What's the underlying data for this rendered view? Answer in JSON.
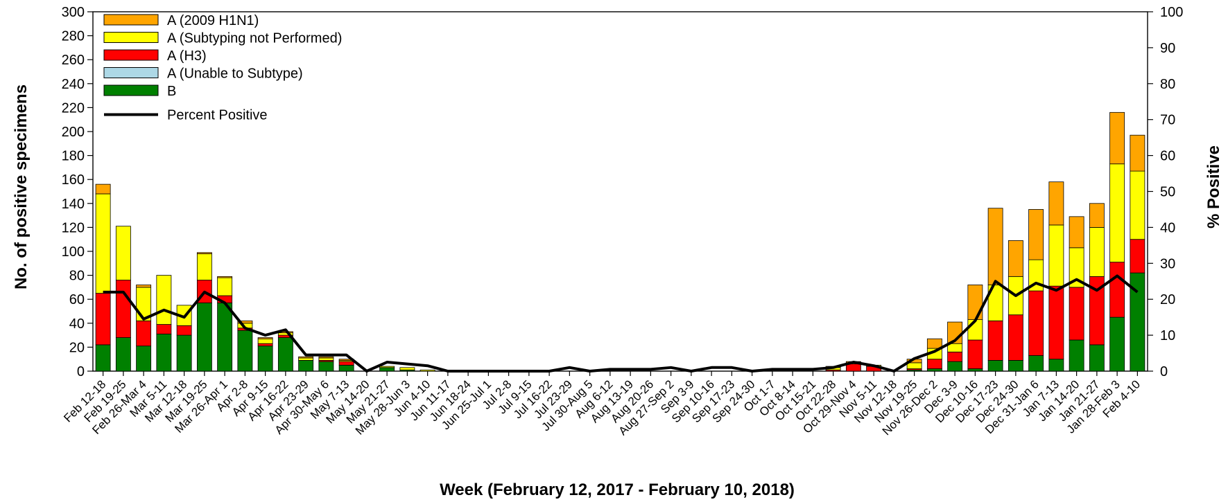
{
  "chart_data": {
    "type": "bar",
    "stacked": true,
    "title": "",
    "xlabel": "Week (February 12, 2017 - February 10, 2018)",
    "ylabel": "No. of positive specimens",
    "y2label": "% Positive",
    "ylim": [
      0,
      300
    ],
    "y2lim": [
      0,
      100
    ],
    "yticks": [
      "0",
      "20",
      "40",
      "60",
      "80",
      "100",
      "120",
      "140",
      "160",
      "180",
      "200",
      "220",
      "240",
      "260",
      "280",
      "300"
    ],
    "y2ticks": [
      "0",
      "10",
      "20",
      "30",
      "40",
      "50",
      "60",
      "70",
      "80",
      "90",
      "100"
    ],
    "legend_position": "top-left",
    "categories": [
      "Feb 12-18",
      "Feb 19-25",
      "Feb 26-Mar 4",
      "Mar 5-11",
      "Mar 12-18",
      "Mar 19-25",
      "Mar 26-Apr 1",
      "Apr 2-8",
      "Apr 9-15",
      "Apr 16-22",
      "Apr 23-29",
      "Apr 30-May 6",
      "May 7-13",
      "May 14-20",
      "May 21-27",
      "May 28-Jun 3",
      "Jun 4-10",
      "Jun 11-17",
      "Jun 18-24",
      "Jun 25-Jul 1",
      "Jul 2-8",
      "Jul 9-15",
      "Jul 16-22",
      "Jul 23-29",
      "Jul 30-Aug 5",
      "Aug 6-12",
      "Aug 13-19",
      "Aug 20-26",
      "Aug 27-Sep 2",
      "Sep 3-9",
      "Sep 10-16",
      "Sep 17-23",
      "Sep 24-30",
      "Oct 1-7",
      "Oct 8-14",
      "Oct 15-21",
      "Oct 22-28",
      "Oct 29-Nov 4",
      "Nov 5-11",
      "Nov 12-18",
      "Nov 19-25",
      "Nov 26-Dec 2",
      "Dec 3-9",
      "Dec 10-16",
      "Dec 17-23",
      "Dec 24-30",
      "Dec 31-Jan 6",
      "Jan 7-13",
      "Jan 14-20",
      "Jan 21-27",
      "Jan 28-Feb 3",
      "Feb 4-10"
    ],
    "series": [
      {
        "name": "B",
        "color": "#008000",
        "values": [
          22,
          28,
          21,
          31,
          30,
          57,
          57,
          34,
          21,
          28,
          9,
          8,
          5,
          0,
          3,
          1,
          0,
          0,
          0,
          0,
          0,
          0,
          0,
          0,
          0,
          0,
          0,
          0,
          0,
          0,
          0,
          0,
          0,
          0,
          0,
          0,
          0,
          0,
          0,
          0,
          1,
          2,
          8,
          2,
          9,
          9,
          13,
          10,
          26,
          22,
          45,
          82
        ]
      },
      {
        "name": "A (Unable to Subtype)",
        "color": "#add8e6",
        "values": [
          0,
          0,
          0,
          0,
          0,
          0,
          0,
          0,
          0,
          0,
          0,
          0,
          0,
          0,
          0,
          0,
          0,
          0,
          0,
          0,
          0,
          0,
          0,
          0,
          0,
          0,
          0,
          0,
          0,
          0,
          0,
          0,
          0,
          0,
          0,
          0,
          0,
          0,
          0,
          0,
          0,
          0,
          0,
          0,
          0,
          0,
          0,
          0,
          0,
          0,
          0,
          0
        ]
      },
      {
        "name": "A (H3)",
        "color": "#ff0000",
        "values": [
          43,
          48,
          21,
          8,
          8,
          19,
          6,
          2,
          2,
          2,
          0,
          1,
          3,
          0,
          0,
          0,
          0,
          0,
          0,
          0,
          0,
          0,
          0,
          0,
          0,
          0,
          0,
          0,
          0,
          0,
          0,
          0,
          0,
          0,
          0,
          0,
          1,
          6,
          4,
          0,
          1,
          8,
          8,
          24,
          33,
          38,
          54,
          61,
          44,
          57,
          46,
          28
        ]
      },
      {
        "name": "A (Subtyping not Performed)",
        "color": "#ffff00",
        "values": [
          83,
          45,
          28,
          41,
          17,
          22,
          15,
          4,
          4,
          2,
          2,
          2,
          1,
          0,
          1,
          2,
          1,
          0,
          0,
          0,
          0,
          0,
          0,
          0,
          0,
          0,
          0,
          0,
          0,
          0,
          0,
          0,
          0,
          0,
          0,
          0,
          2,
          1,
          1,
          0,
          5,
          9,
          7,
          17,
          30,
          32,
          26,
          51,
          33,
          41,
          82,
          57
        ]
      },
      {
        "name": "A (2009 H1N1)",
        "color": "#ffa500",
        "values": [
          8,
          0,
          2,
          0,
          0,
          1,
          1,
          2,
          1,
          1,
          1,
          1,
          1,
          0,
          0,
          0,
          0,
          0,
          0,
          0,
          0,
          0,
          0,
          0,
          0,
          0,
          0,
          0,
          0,
          0,
          0,
          0,
          0,
          0,
          0,
          0,
          1,
          1,
          0,
          0,
          3,
          8,
          18,
          29,
          64,
          30,
          42,
          36,
          26,
          20,
          43,
          30
        ]
      }
    ],
    "line_series": {
      "name": "Percent Positive",
      "color": "#000000",
      "axis": "right",
      "values": [
        22,
        22,
        14.5,
        17,
        15,
        22,
        19,
        12,
        10,
        11.5,
        4.5,
        4.5,
        4.5,
        0,
        2.5,
        2,
        1.5,
        0,
        0,
        0,
        0,
        0,
        0,
        1,
        0,
        0.5,
        0.5,
        0.5,
        1,
        0,
        1,
        1,
        0,
        0.5,
        0.5,
        0.5,
        1,
        2.5,
        1.5,
        0,
        3.5,
        5.5,
        8.5,
        14,
        25,
        21,
        24.5,
        22.5,
        25.5,
        22.5,
        26.5,
        22
      ]
    },
    "legend": [
      "A (2009 H1N1)",
      "A (Subtyping not Performed)",
      "A (H3)",
      "A (Unable to Subtype)",
      "B",
      "Percent Positive"
    ]
  }
}
